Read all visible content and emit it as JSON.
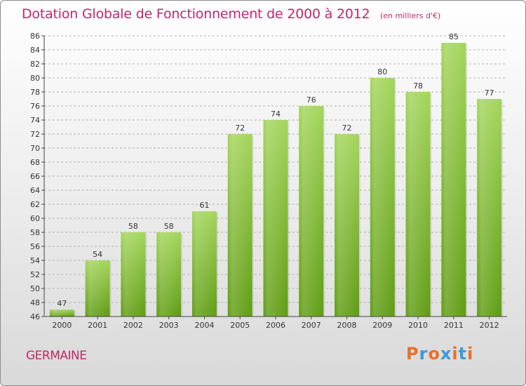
{
  "title": "Dotation Globale de Fonctionnement de 2000 à 2012",
  "subtitle": "(en milliers d'€)",
  "commune": "GERMAINE",
  "logo": {
    "text": "Proxiti",
    "colors": [
      "#e8702a",
      "#3a9ad9",
      "#e8702a",
      "#3a9ad9",
      "#e8702a",
      "#3a9ad9",
      "#e8702a"
    ]
  },
  "colors": {
    "title": "#c0286a",
    "bar_top": "#a3d55a",
    "bar_bottom": "#5f9c12",
    "grid": "#b0b0b0"
  },
  "chart_data": {
    "type": "bar",
    "title": "Dotation Globale de Fonctionnement de 2000 à 2012",
    "subtitle": "(en milliers d'€)",
    "categories": [
      "2000",
      "2001",
      "2002",
      "2003",
      "2004",
      "2005",
      "2006",
      "2007",
      "2008",
      "2009",
      "2010",
      "2011",
      "2012"
    ],
    "values": [
      47,
      54,
      58,
      58,
      61,
      72,
      74,
      76,
      72,
      80,
      78,
      85,
      77
    ],
    "ylim": [
      46,
      86
    ],
    "ytick_step": 2,
    "grid": true,
    "xlabel": "",
    "ylabel": ""
  }
}
